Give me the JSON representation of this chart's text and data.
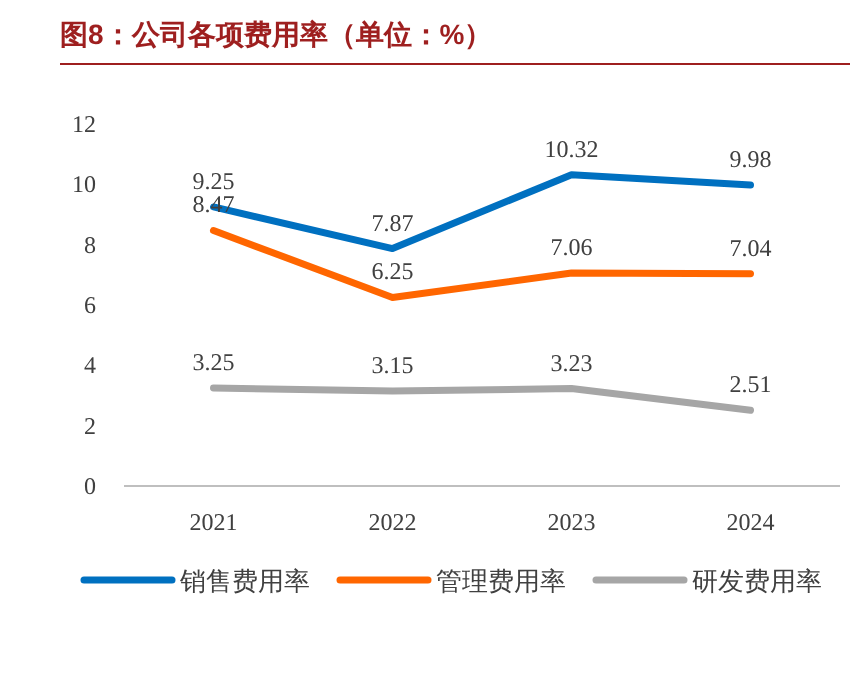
{
  "chart_data": {
    "type": "line",
    "title": "图8：公司各项费用率（单位：%）",
    "categories": [
      "2021",
      "2022",
      "2023",
      "2024"
    ],
    "series": [
      {
        "name": "销售费用率",
        "color": "#0070c0",
        "values": [
          9.25,
          7.87,
          10.32,
          9.98
        ]
      },
      {
        "name": "管理费用率",
        "color": "#ff6600",
        "values": [
          8.47,
          6.25,
          7.06,
          7.04
        ]
      },
      {
        "name": "研发费用率",
        "color": "#a6a6a6",
        "values": [
          3.25,
          3.15,
          3.23,
          2.51
        ]
      }
    ],
    "ylim": [
      0,
      12
    ],
    "yticks": [
      0,
      2,
      4,
      6,
      8,
      10,
      12
    ],
    "data_labels": true,
    "grid": false,
    "legend": "bottom",
    "marker": "none",
    "line_style": "solid"
  }
}
